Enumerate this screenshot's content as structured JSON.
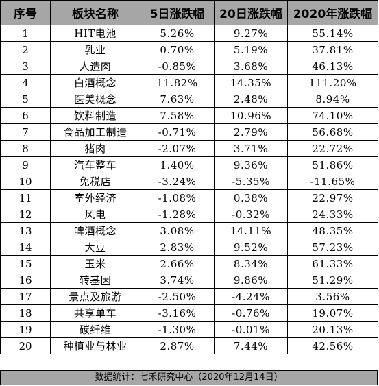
{
  "table": {
    "headers": [
      "序号",
      "板块名称",
      "5日涨跌幅",
      "20日涨跌幅",
      "2020年涨跌幅"
    ],
    "rows": [
      [
        "1",
        "HIT电池",
        "5.26%",
        "9.27%",
        "55.14%"
      ],
      [
        "2",
        "乳业",
        "0.70%",
        "5.19%",
        "37.81%"
      ],
      [
        "3",
        "人造肉",
        "-0.85%",
        "3.68%",
        "46.13%"
      ],
      [
        "4",
        "白酒概念",
        "11.82%",
        "14.35%",
        "111.20%"
      ],
      [
        "5",
        "医美概念",
        "7.63%",
        "2.48%",
        "8.94%"
      ],
      [
        "6",
        "饮料制造",
        "7.58%",
        "10.96%",
        "74.10%"
      ],
      [
        "7",
        "食品加工制造",
        "-0.71%",
        "2.79%",
        "56.68%"
      ],
      [
        "8",
        "猪肉",
        "-2.07%",
        "3.71%",
        "22.72%"
      ],
      [
        "9",
        "汽车整车",
        "1.40%",
        "9.36%",
        "51.86%"
      ],
      [
        "10",
        "免税店",
        "-3.24%",
        "-5.35%",
        "-11.65%"
      ],
      [
        "11",
        "室外经济",
        "-1.08%",
        "0.38%",
        "22.97%"
      ],
      [
        "12",
        "风电",
        "-1.28%",
        "-0.32%",
        "24.33%"
      ],
      [
        "13",
        "啤酒概念",
        "3.08%",
        "14.11%",
        "48.35%"
      ],
      [
        "14",
        "大豆",
        "2.83%",
        "9.52%",
        "57.23%"
      ],
      [
        "15",
        "玉米",
        "2.66%",
        "8.34%",
        "61.33%"
      ],
      [
        "16",
        "转基因",
        "3.74%",
        "9.86%",
        "51.29%"
      ],
      [
        "17",
        "景点及旅游",
        "-2.50%",
        "-4.24%",
        "3.56%"
      ],
      [
        "18",
        "共享单车",
        "-3.16%",
        "-0.76%",
        "19.07%"
      ],
      [
        "19",
        "碳纤维",
        "-1.30%",
        "-0.01%",
        "20.13%"
      ],
      [
        "20",
        "种植业与林业",
        "2.87%",
        "7.44%",
        "42.56%"
      ]
    ]
  },
  "footer": {
    "note": "数据统计：七禾研究中心（2020年12月14日）"
  },
  "colors": {
    "header_background": "#a6a6a6",
    "grid_line": "#000000"
  }
}
